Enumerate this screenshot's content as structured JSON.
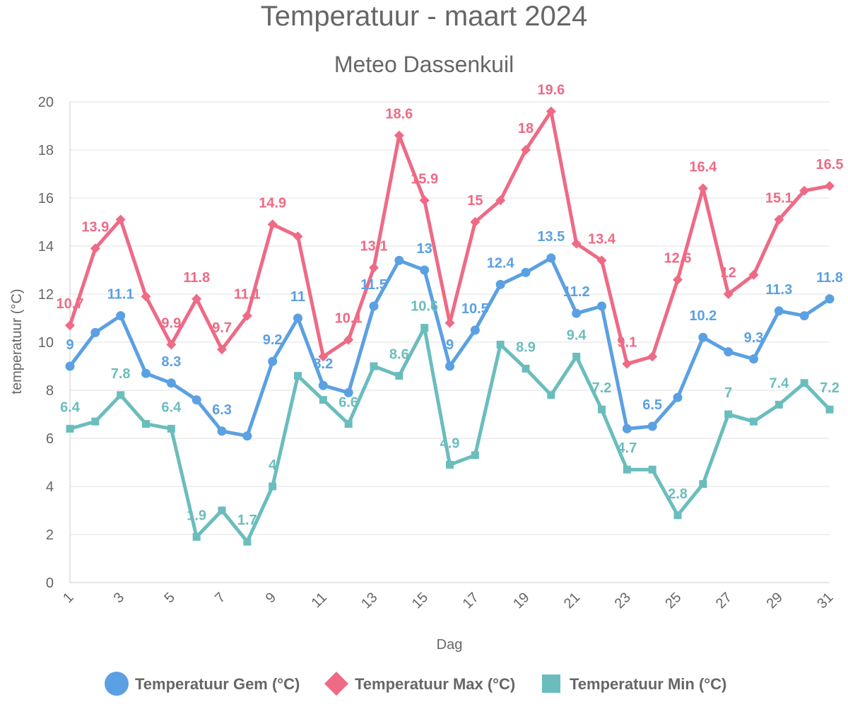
{
  "chart_data": {
    "type": "line",
    "title": "Temperatuur - maart 2024",
    "subtitle": "Meteo Dassenkuil",
    "xlabel": "Dag",
    "ylabel": "temperatuur (°C)",
    "ylim": [
      0,
      20
    ],
    "yticks": [
      0,
      2,
      4,
      6,
      8,
      10,
      12,
      14,
      16,
      18,
      20
    ],
    "x": [
      1,
      2,
      3,
      4,
      5,
      6,
      7,
      8,
      9,
      10,
      11,
      12,
      13,
      14,
      15,
      16,
      17,
      18,
      19,
      20,
      21,
      22,
      23,
      24,
      25,
      26,
      27,
      28,
      29,
      30,
      31
    ],
    "xticks": [
      1,
      3,
      5,
      7,
      9,
      11,
      13,
      15,
      17,
      19,
      21,
      23,
      25,
      27,
      29,
      31
    ],
    "grid": true,
    "legend_position": "bottom",
    "series": [
      {
        "name": "Temperatuur Gem (°C)",
        "color": "#5ba0e3",
        "marker": "circle",
        "values": [
          9,
          10.4,
          11.1,
          8.7,
          8.3,
          7.6,
          6.3,
          6.1,
          9.2,
          11,
          8.2,
          7.9,
          11.5,
          13.4,
          13,
          9,
          10.5,
          12.4,
          12.9,
          13.5,
          11.2,
          11.5,
          6.4,
          6.5,
          7.7,
          10.2,
          9.6,
          9.3,
          11.3,
          11.1,
          11.8
        ],
        "labels": [
          "9",
          "",
          "11.1",
          "",
          "8.3",
          "",
          "6.3",
          "",
          "9.2",
          "11",
          "8.2",
          "",
          "11.5",
          "",
          "13",
          "9",
          "10.5",
          "12.4",
          "",
          "13.5",
          "11.2",
          "",
          "",
          "6.5",
          "",
          "10.2",
          "",
          "9.3",
          "11.3",
          "",
          "11.8"
        ]
      },
      {
        "name": "Temperatuur Max (°C)",
        "color": "#ee6a85",
        "marker": "diamond",
        "values": [
          10.7,
          13.9,
          15.1,
          11.9,
          9.9,
          11.8,
          9.7,
          11.1,
          14.9,
          14.4,
          9.4,
          10.1,
          13.1,
          18.6,
          15.9,
          10.8,
          15,
          15.9,
          18,
          19.6,
          14.1,
          13.4,
          9.1,
          9.4,
          12.6,
          16.4,
          12,
          12.8,
          15.1,
          16.3,
          16.5
        ],
        "labels": [
          "10.7",
          "13.9",
          "",
          "",
          "9.9",
          "11.8",
          "9.7",
          "11.1",
          "14.9",
          "",
          "",
          "10.1",
          "13.1",
          "18.6",
          "15.9",
          "",
          "15",
          "",
          "18",
          "19.6",
          "",
          "13.4",
          "9.1",
          "",
          "12.6",
          "16.4",
          "12",
          "",
          "15.1",
          "",
          "16.5"
        ]
      },
      {
        "name": "Temperatuur Min (°C)",
        "color": "#6bbdbd",
        "marker": "square",
        "values": [
          6.4,
          6.7,
          7.8,
          6.6,
          6.4,
          1.9,
          3,
          1.7,
          4,
          8.6,
          7.6,
          6.6,
          9,
          8.6,
          10.6,
          4.9,
          5.3,
          9.9,
          8.9,
          7.8,
          9.4,
          7.2,
          4.7,
          4.7,
          2.8,
          4.1,
          7,
          6.7,
          7.4,
          8.3,
          7.2
        ],
        "labels": [
          "6.4",
          "",
          "7.8",
          "",
          "6.4",
          "1.9",
          "",
          "1.7",
          "4",
          "",
          "",
          "6.6",
          "",
          "8.6",
          "10.6",
          "4.9",
          "",
          "",
          "8.9",
          "",
          "9.4",
          "7.2",
          "4.7",
          "",
          "2.8",
          "",
          "7",
          "",
          "7.4",
          "",
          "7.2"
        ]
      }
    ]
  }
}
